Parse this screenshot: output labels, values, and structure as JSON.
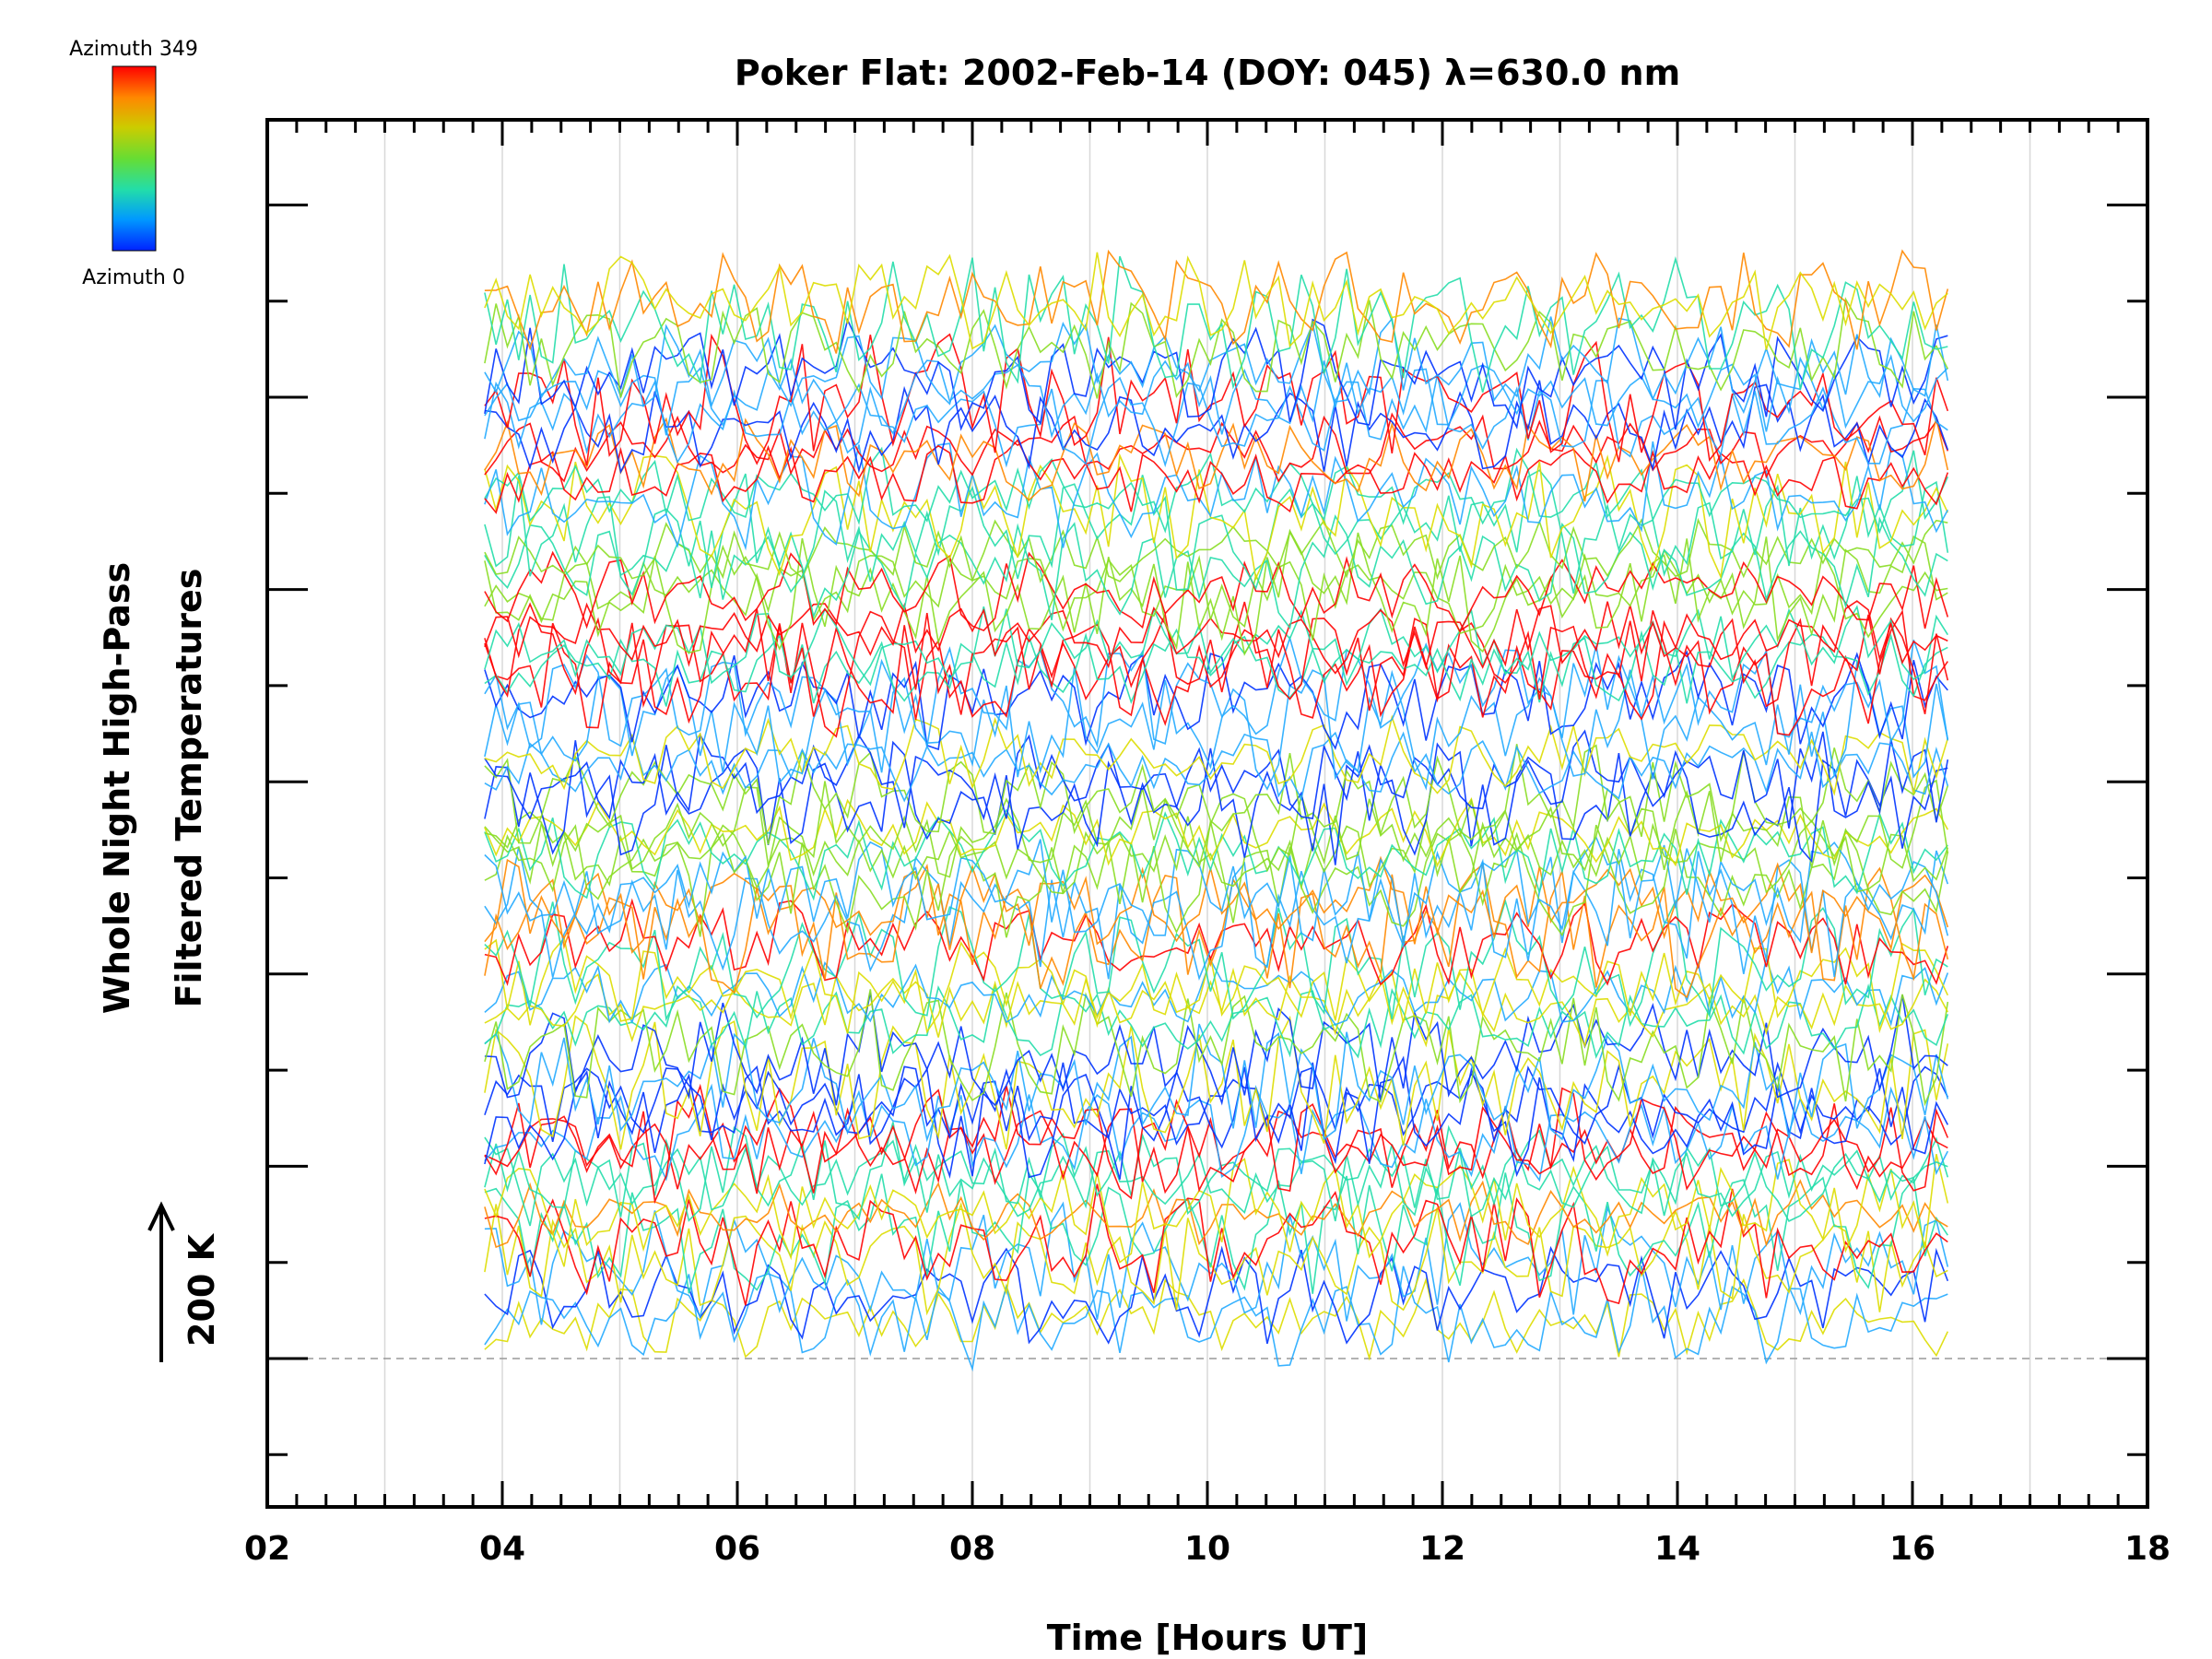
{
  "chart_data": {
    "type": "line",
    "title": "Poker Flat: 2002-Feb-14 (DOY: 045) λ=630.0 nm",
    "xlabel": "Time [Hours UT]",
    "ylabel_line1": "Whole Night High-Pass",
    "ylabel_line2": "Filtered Temperatures",
    "scale_label": "200 K",
    "xlim": [
      2,
      18
    ],
    "x_ticks": [
      "02",
      "04",
      "06",
      "08",
      "10",
      "12",
      "14",
      "16",
      "18"
    ],
    "x_range_of_data": [
      3.85,
      16.3
    ],
    "colorbar": {
      "top_label": "Azimuth 349",
      "bottom_label": "Azimuth 0",
      "colormap": "rainbow",
      "colors": [
        "#0033ff",
        "#22aaff",
        "#22ddaa",
        "#88dd22",
        "#dddd00",
        "#ff8800",
        "#ff0000"
      ]
    },
    "grid": true,
    "legend": "top-left colorbar"
  }
}
